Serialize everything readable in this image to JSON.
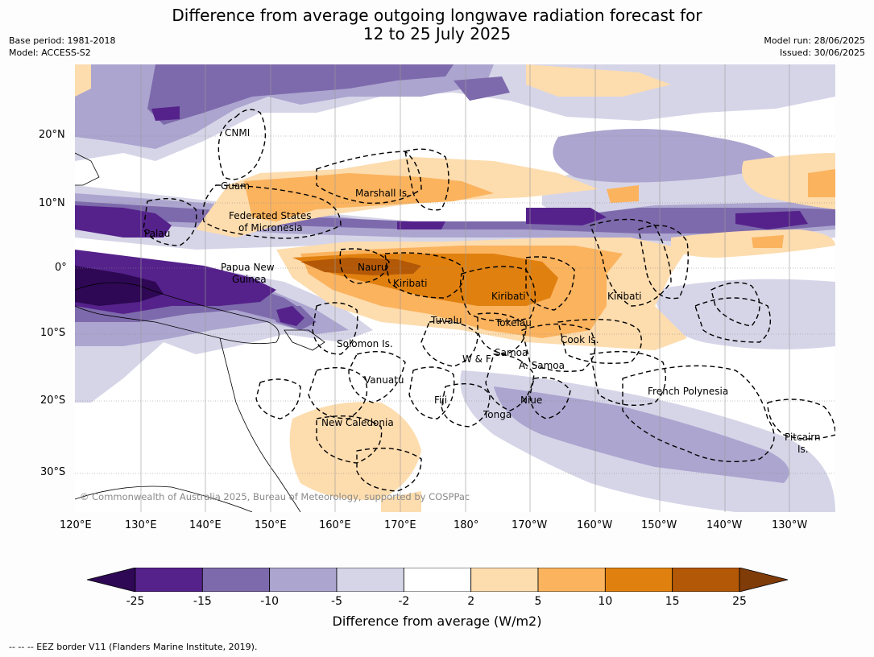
{
  "title_line1": "Difference from average outgoing longwave radiation forecast for",
  "title_line2": "12 to 25 July 2025",
  "meta_left": {
    "base_period": "Base period: 1981-2018",
    "model": "Model: ACCESS-S2"
  },
  "meta_right": {
    "model_run": "Model run: 28/06/2025",
    "issued": "Issued: 30/06/2025"
  },
  "lat_labels": [
    "20°N",
    "10°N",
    "0°",
    "10°S",
    "20°S",
    "30°S"
  ],
  "lon_labels": [
    "120°E",
    "130°E",
    "140°E",
    "150°E",
    "160°E",
    "170°E",
    "180°",
    "170°W",
    "160°W",
    "150°W",
    "140°W",
    "130°W"
  ],
  "places": {
    "cnmi": "CNMI",
    "guam": "Guam",
    "marshall": "Marshall Is.",
    "fsm1": "Federated States",
    "fsm2": "of Micronesia",
    "palau": "Palau",
    "png1": "Papua New",
    "png2": "Guinea",
    "nauru": "Nauru",
    "kiribati_w": "Kiribati",
    "kiribati_c": "Kiribati",
    "kiribati_e": "Kiribati",
    "tuvalu": "Tuvalu",
    "tokelau": "Tokelau",
    "cook": "Cook Is.",
    "solomon": "Solomon Is.",
    "wf": "W & F",
    "samoa": "Samoa",
    "asamoa": "A. Samoa",
    "vanuatu": "Vanuatu",
    "fiji": "Fiji",
    "niue": "Niue",
    "tonga": "Tonga",
    "frpoly": "French Polynesia",
    "newcal": "New Caledonia",
    "pitcairn1": "Pitcairn",
    "pitcairn2": "Is."
  },
  "copyright": "© Commonwealth of Australia 2025, Bureau of Meteorology, supported by COSPPac",
  "colorbar": {
    "ticks": [
      "-25",
      "-15",
      "-10",
      "-5",
      "-2",
      "2",
      "5",
      "10",
      "15",
      "25"
    ],
    "colors": [
      "#2e0854",
      "#55228b",
      "#7d6aac",
      "#aca5cf",
      "#d6d5e8",
      "#ffffff",
      "#fddcae",
      "#fbb35e",
      "#e0800f",
      "#b35806",
      "#7f3b08"
    ],
    "title": "Difference from average (W/m2)"
  },
  "footer": "--  --  -- EEZ border V11 (Flanders Marine Institute, 2019)."
}
